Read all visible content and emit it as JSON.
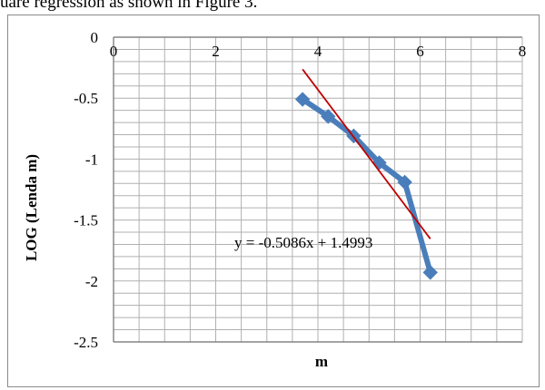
{
  "caption": "uare regression as shown in Figure 3.",
  "chart_data": {
    "type": "scatter",
    "title": "",
    "xlabel": "m",
    "ylabel": "LOG (Lenda m)",
    "xlim": [
      0,
      8
    ],
    "ylim": [
      -2.5,
      0
    ],
    "x_ticks": [
      "0",
      "2",
      "4",
      "6",
      "8"
    ],
    "y_ticks": [
      "0",
      "-0.5",
      "-1",
      "-1.5",
      "-2",
      "-2.5"
    ],
    "grid": true,
    "legend": "none",
    "series": [
      {
        "x": [
          3.7,
          4.2,
          4.7,
          5.2,
          5.7,
          6.2
        ],
        "y": [
          -0.51,
          -0.65,
          -0.81,
          -1.03,
          -1.19,
          -1.93
        ],
        "color": "#4a7ebb",
        "marker": "diamond",
        "line": true
      }
    ],
    "trendline": {
      "slope": -0.5086,
      "intercept": 1.4993,
      "x_range": [
        3.7,
        6.2
      ],
      "color": "#c00000",
      "equation_label": "y = -0.5086x + 1.4993"
    }
  }
}
